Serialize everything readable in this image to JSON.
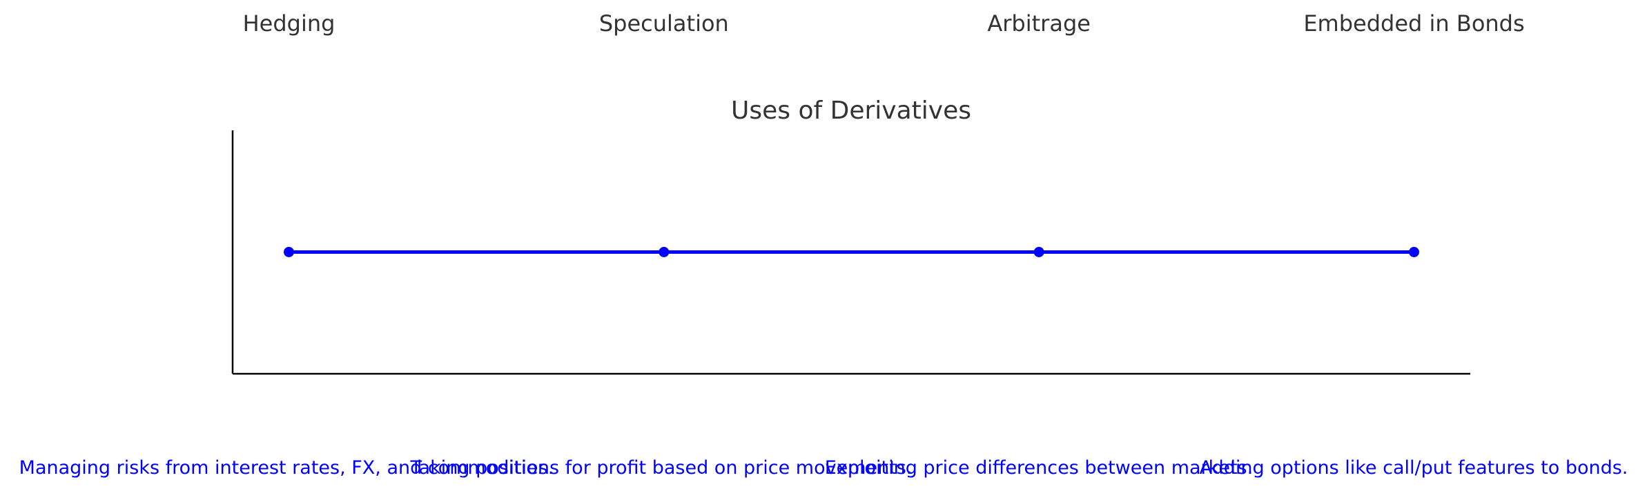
{
  "chart_data": {
    "type": "line",
    "title": "Uses of Derivatives",
    "xlabel": "",
    "ylabel": "",
    "categories": [
      "Hedging",
      "Speculation",
      "Arbitrage",
      "Embedded in Bonds"
    ],
    "x": [
      0,
      1,
      2,
      3
    ],
    "values": [
      1,
      1,
      1,
      1
    ],
    "xlim": [
      -0.15,
      3.15
    ],
    "ylim": [
      0.5,
      1.5
    ],
    "category_label_position": "top",
    "descriptions": [
      "Managing risks from interest rates, FX, and commodities.",
      "Taking positions for profit based on price movements.",
      "Exploiting price differences between markets.",
      "Adding options like call/put features to bonds."
    ],
    "grid": false,
    "legend": "none",
    "colors": {
      "line": "#0000ff",
      "marker": "#0000ff",
      "description_text": "#0000ff",
      "title_text": "#333333",
      "label_text": "#333333",
      "axis": "#000000"
    }
  }
}
